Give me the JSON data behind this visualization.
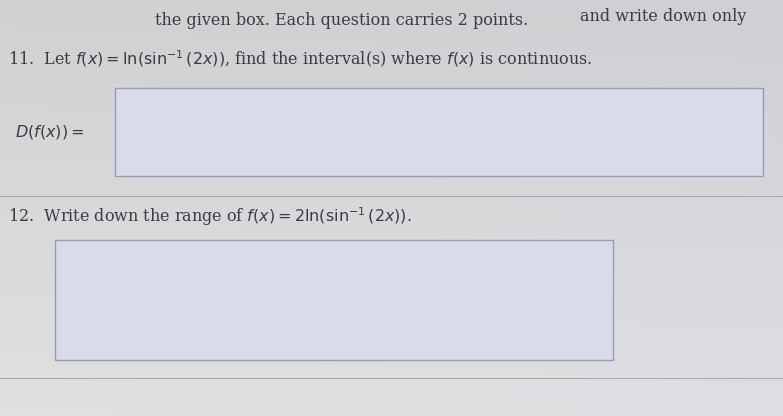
{
  "bg_color": "#dcdcdc",
  "top_line1": "the given box. Each question carries 2 points.",
  "top_line1_right": "and write down only",
  "q11_text": "11.  Let $f(x) = \\mathrm{ln}(\\mathrm{sin}^{-1}(2x))$, find the interval(s) where $f(x)$ is continuous.",
  "q11_label": "$D(f(x)) =$",
  "q12_text": "12.  Write down the range of $f(x) = 2\\,\\mathrm{ln}(\\mathrm{sin}^{-1}(2x))$.",
  "text_color": "#3a3a4a",
  "box1_facecolor": "#d8dce8",
  "box1_edgecolor": "#9999bb",
  "box2_facecolor": "#d8dce8",
  "box2_edgecolor": "#9999bb",
  "separator_color": "#aaaaaa",
  "font_size": 11.5
}
